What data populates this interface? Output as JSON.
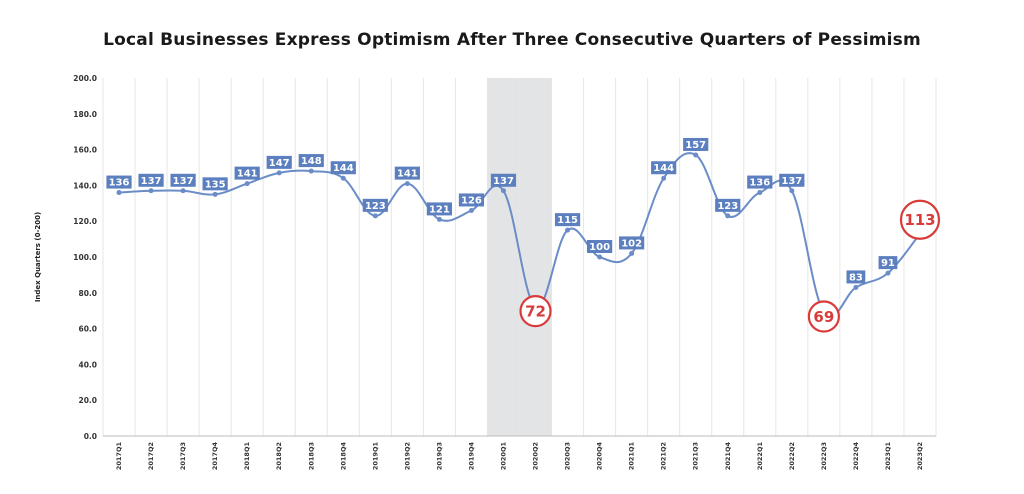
{
  "chart_data": {
    "type": "line",
    "title": "Local Businesses Express Optimism After Three Consecutive Quarters of Pessimism",
    "xlabel": "",
    "ylabel": "Index Quarters (0-200)",
    "ylim": [
      0,
      200
    ],
    "yticks": [
      "0.0",
      "20.0",
      "40.0",
      "60.0",
      "80.0",
      "100.0",
      "120.0",
      "140.0",
      "160.0",
      "180.0",
      "200.0"
    ],
    "categories": [
      "2017Q1",
      "2017Q2",
      "2017Q3",
      "2017Q4",
      "2018Q1",
      "2018Q2",
      "2018Q3",
      "2018Q4",
      "2019Q1",
      "2019Q2",
      "2019Q3",
      "2019Q4",
      "2020Q1",
      "2020Q2",
      "2020Q3",
      "2020Q4",
      "2021Q1",
      "2021Q2",
      "2021Q3",
      "2021Q4",
      "2022Q1",
      "2022Q2",
      "2022Q3",
      "2022Q4",
      "2023Q1",
      "2023Q2"
    ],
    "values": [
      136,
      137,
      137,
      135,
      141,
      147,
      148,
      144,
      123,
      141,
      121,
      126,
      137,
      72,
      115,
      100,
      102,
      144,
      157,
      123,
      136,
      137,
      69,
      83,
      91,
      113
    ],
    "highlighted": [
      "2020Q2",
      "2022Q3",
      "2023Q2"
    ],
    "shaded_range": [
      "2020Q1",
      "2020Q2"
    ],
    "grid": "vertical",
    "colors": {
      "line": "#6a8cc7",
      "label_box": "#5b7fbf",
      "highlight": "#d93a3a",
      "shade": "#e3e4e6"
    }
  }
}
